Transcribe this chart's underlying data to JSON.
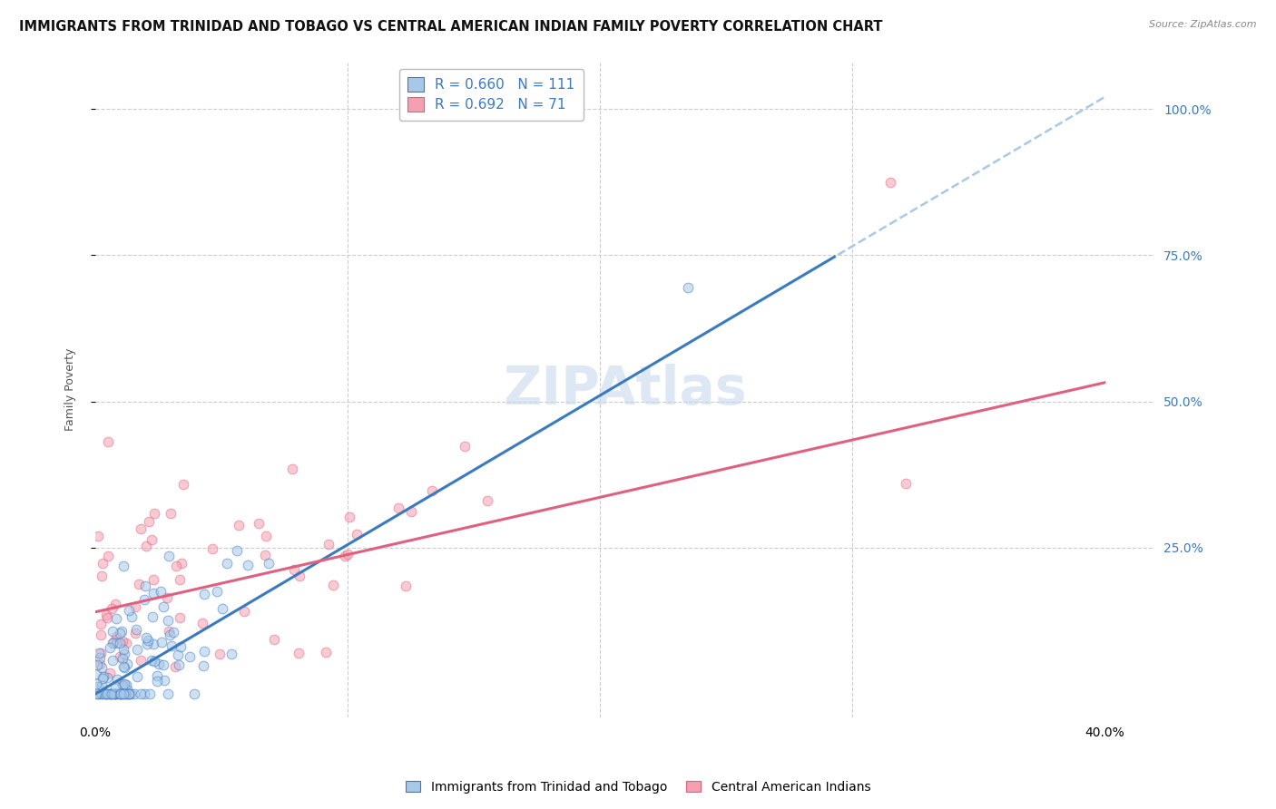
{
  "title": "IMMIGRANTS FROM TRINIDAD AND TOBAGO VS CENTRAL AMERICAN INDIAN FAMILY POVERTY CORRELATION CHART",
  "source": "Source: ZipAtlas.com",
  "ylabel": "Family Poverty",
  "ytick_labels": [
    "100.0%",
    "75.0%",
    "50.0%",
    "25.0%"
  ],
  "ytick_values": [
    1.0,
    0.75,
    0.5,
    0.25
  ],
  "xlim": [
    0.0,
    0.42
  ],
  "ylim": [
    -0.04,
    1.08
  ],
  "watermark": "ZIPAtlas",
  "series1_color": "#a8c8e8",
  "series2_color": "#f4a0b0",
  "trendline1_color": "#3a7abf",
  "trendline2_color": "#e06080",
  "trendline_dashed_color": "#aac8e8",
  "R1": 0.66,
  "N1": 111,
  "R2": 0.692,
  "N2": 71,
  "background_color": "#ffffff",
  "grid_color": "#cccccc",
  "title_fontsize": 10.5,
  "axis_label_fontsize": 9,
  "tick_fontsize": 10,
  "marker_size": 60,
  "marker_alpha": 0.55,
  "trendline1_intercept": 0.0,
  "trendline1_slope": 2.55,
  "trendline2_intercept": 0.14,
  "trendline2_slope": 0.98
}
